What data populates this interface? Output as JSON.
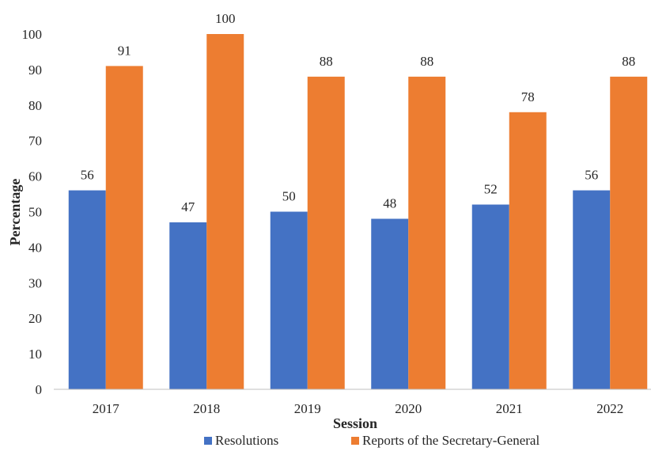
{
  "chart_data": {
    "type": "bar",
    "categories": [
      "2017",
      "2018",
      "2019",
      "2020",
      "2021",
      "2022"
    ],
    "series": [
      {
        "name": "Resolutions",
        "values": [
          56,
          47,
          50,
          48,
          52,
          56
        ],
        "color": "#4472C4"
      },
      {
        "name": "Reports of the Secretary-General",
        "values": [
          91,
          100,
          88,
          88,
          78,
          88
        ],
        "color": "#ED7D31"
      }
    ],
    "xlabel": "Session",
    "ylabel": "Percentage",
    "ylim": [
      0,
      100
    ],
    "yticks": [
      0,
      10,
      20,
      30,
      40,
      50,
      60,
      70,
      80,
      90,
      100
    ],
    "grid": false,
    "legend": "bottom",
    "data_labels": true
  }
}
